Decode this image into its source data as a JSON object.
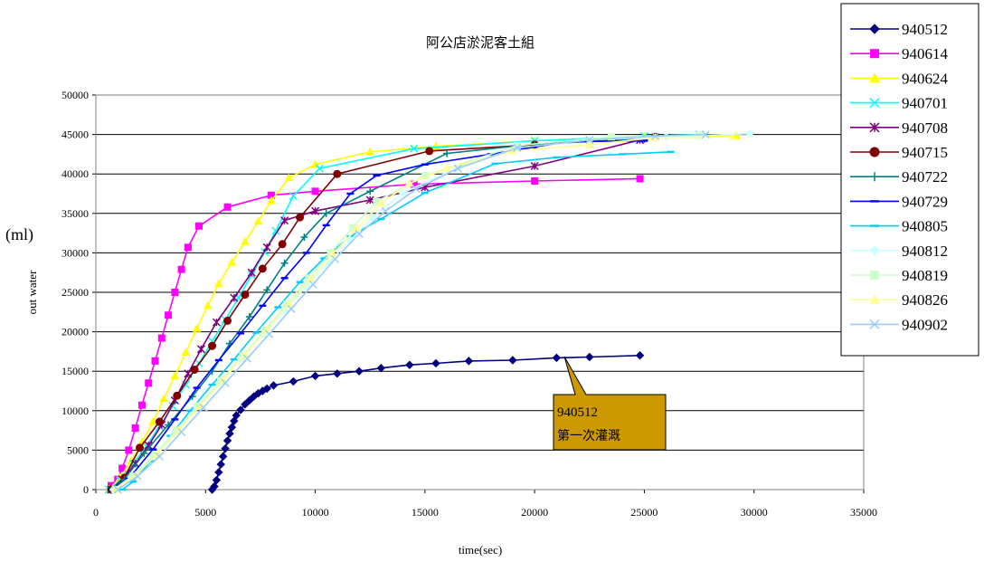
{
  "chart_data": {
    "type": "line",
    "title": "阿公店淤泥客土組",
    "xlabel": "time(sec)",
    "ylabel": "out water",
    "unit_label": "(ml)",
    "xlim": [
      0,
      35000
    ],
    "ylim": [
      0,
      50000
    ],
    "x_ticks": [
      0,
      5000,
      10000,
      15000,
      20000,
      25000,
      30000,
      35000
    ],
    "y_ticks": [
      0,
      5000,
      10000,
      15000,
      20000,
      25000,
      30000,
      35000,
      40000,
      45000,
      50000
    ],
    "grid": "horizontal",
    "legend_position": "right",
    "annotation": {
      "lines": [
        "940512",
        "第一次灌溉"
      ],
      "points_to_series": "940512"
    },
    "series": [
      {
        "name": "940512",
        "color": "#000080",
        "marker": "diamond",
        "points": [
          [
            5300,
            0
          ],
          [
            5400,
            400
          ],
          [
            5500,
            1200
          ],
          [
            5600,
            2200
          ],
          [
            5700,
            3200
          ],
          [
            5800,
            4200
          ],
          [
            5900,
            5200
          ],
          [
            6000,
            6200
          ],
          [
            6100,
            7100
          ],
          [
            6200,
            7900
          ],
          [
            6300,
            8700
          ],
          [
            6400,
            9400
          ],
          [
            6600,
            10100
          ],
          [
            6800,
            10800
          ],
          [
            7000,
            11300
          ],
          [
            7200,
            11800
          ],
          [
            7400,
            12200
          ],
          [
            7600,
            12500
          ],
          [
            7800,
            12800
          ],
          [
            8100,
            13200
          ],
          [
            9000,
            13700
          ],
          [
            10000,
            14400
          ],
          [
            11000,
            14700
          ],
          [
            12000,
            15000
          ],
          [
            13000,
            15400
          ],
          [
            14300,
            15800
          ],
          [
            15500,
            16000
          ],
          [
            17000,
            16300
          ],
          [
            19000,
            16400
          ],
          [
            21000,
            16700
          ],
          [
            22500,
            16800
          ],
          [
            24800,
            17000
          ]
        ]
      },
      {
        "name": "940614",
        "color": "#FF00FF",
        "marker": "square",
        "points": [
          [
            700,
            500
          ],
          [
            1000,
            1300
          ],
          [
            1200,
            2700
          ],
          [
            1500,
            5000
          ],
          [
            1800,
            7800
          ],
          [
            2100,
            10700
          ],
          [
            2400,
            13500
          ],
          [
            2700,
            16300
          ],
          [
            3000,
            19200
          ],
          [
            3300,
            22100
          ],
          [
            3600,
            25000
          ],
          [
            3900,
            27900
          ],
          [
            4200,
            30700
          ],
          [
            4700,
            33400
          ],
          [
            6000,
            35800
          ],
          [
            8000,
            37300
          ],
          [
            10000,
            37800
          ],
          [
            14500,
            38700
          ],
          [
            20000,
            39100
          ],
          [
            24800,
            39400
          ]
        ]
      },
      {
        "name": "940624",
        "color": "#FFFF00",
        "marker": "triangle",
        "points": [
          [
            600,
            0
          ],
          [
            1100,
            1500
          ],
          [
            1600,
            3600
          ],
          [
            2100,
            6000
          ],
          [
            2600,
            8600
          ],
          [
            3100,
            11500
          ],
          [
            3600,
            14400
          ],
          [
            4100,
            17400
          ],
          [
            4600,
            20400
          ],
          [
            5100,
            23300
          ],
          [
            5600,
            26100
          ],
          [
            6200,
            28800
          ],
          [
            6800,
            31400
          ],
          [
            7400,
            34000
          ],
          [
            8000,
            36600
          ],
          [
            8800,
            39500
          ],
          [
            10000,
            41200
          ],
          [
            12500,
            42800
          ],
          [
            15500,
            43500
          ],
          [
            20000,
            44200
          ],
          [
            25000,
            44700
          ],
          [
            29200,
            44800
          ]
        ]
      },
      {
        "name": "940701",
        "color": "#00FFFF",
        "marker": "x",
        "points": [
          [
            600,
            0
          ],
          [
            1100,
            1200
          ],
          [
            1700,
            3300
          ],
          [
            2300,
            5500
          ],
          [
            2900,
            8000
          ],
          [
            3500,
            10600
          ],
          [
            4100,
            13300
          ],
          [
            4700,
            16000
          ],
          [
            5300,
            18800
          ],
          [
            5900,
            21500
          ],
          [
            6500,
            24300
          ],
          [
            7100,
            27200
          ],
          [
            7700,
            30100
          ],
          [
            8200,
            32800
          ],
          [
            9000,
            37200
          ],
          [
            10200,
            40700
          ],
          [
            14500,
            43200
          ],
          [
            20000,
            44200
          ],
          [
            25000,
            44800
          ],
          [
            27500,
            45000
          ]
        ]
      },
      {
        "name": "940708",
        "color": "#800080",
        "marker": "asterisk",
        "points": [
          [
            700,
            0
          ],
          [
            1200,
            1300
          ],
          [
            1800,
            3300
          ],
          [
            2400,
            5600
          ],
          [
            3000,
            8200
          ],
          [
            3600,
            11300
          ],
          [
            4200,
            14700
          ],
          [
            4800,
            17800
          ],
          [
            5500,
            21200
          ],
          [
            6300,
            24300
          ],
          [
            7100,
            27500
          ],
          [
            7800,
            30700
          ],
          [
            8600,
            34100
          ],
          [
            10000,
            35300
          ],
          [
            12500,
            36700
          ],
          [
            15000,
            38300
          ],
          [
            20000,
            41000
          ],
          [
            24800,
            44300
          ]
        ]
      },
      {
        "name": "940715",
        "color": "#800000",
        "marker": "circle",
        "points": [
          [
            700,
            0
          ],
          [
            1300,
            1500
          ],
          [
            2000,
            5300
          ],
          [
            2900,
            8600
          ],
          [
            3700,
            11900
          ],
          [
            4500,
            15200
          ],
          [
            5300,
            18200
          ],
          [
            6000,
            21400
          ],
          [
            6800,
            24700
          ],
          [
            7600,
            28000
          ],
          [
            8500,
            31100
          ],
          [
            9300,
            34500
          ],
          [
            11000,
            40000
          ],
          [
            15200,
            42900
          ],
          [
            20000,
            43700
          ],
          [
            25500,
            44700
          ]
        ]
      },
      {
        "name": "940722",
        "color": "#008080",
        "marker": "plus",
        "points": [
          [
            700,
            0
          ],
          [
            1300,
            1300
          ],
          [
            2200,
            4600
          ],
          [
            3300,
            8200
          ],
          [
            4400,
            11800
          ],
          [
            5300,
            15000
          ],
          [
            6100,
            18500
          ],
          [
            7000,
            21900
          ],
          [
            7800,
            25300
          ],
          [
            8600,
            28700
          ],
          [
            9500,
            32000
          ],
          [
            10500,
            35000
          ],
          [
            12500,
            37800
          ],
          [
            16000,
            42600
          ],
          [
            20000,
            43800
          ],
          [
            25000,
            44400
          ]
        ]
      },
      {
        "name": "940729",
        "color": "#0000FF",
        "marker": "dash",
        "points": [
          [
            700,
            0
          ],
          [
            1500,
            1400
          ],
          [
            2600,
            5100
          ],
          [
            3600,
            8900
          ],
          [
            4600,
            12900
          ],
          [
            5600,
            16400
          ],
          [
            6600,
            19800
          ],
          [
            7600,
            23300
          ],
          [
            8600,
            26800
          ],
          [
            9600,
            30000
          ],
          [
            10500,
            33500
          ],
          [
            11600,
            37500
          ],
          [
            12800,
            39800
          ],
          [
            15000,
            41200
          ],
          [
            18000,
            42500
          ],
          [
            21500,
            44100
          ],
          [
            25000,
            44200
          ]
        ]
      },
      {
        "name": "940805",
        "color": "#00CCFF",
        "marker": "dash",
        "points": [
          [
            1200,
            0
          ],
          [
            1700,
            1000
          ],
          [
            2500,
            3600
          ],
          [
            3400,
            6800
          ],
          [
            4300,
            10000
          ],
          [
            5300,
            13300
          ],
          [
            6300,
            16500
          ],
          [
            7300,
            19900
          ],
          [
            8300,
            23100
          ],
          [
            9300,
            26300
          ],
          [
            10400,
            29300
          ],
          [
            11600,
            32100
          ],
          [
            13000,
            34300
          ],
          [
            15000,
            37600
          ],
          [
            18200,
            41300
          ],
          [
            21000,
            42100
          ],
          [
            24000,
            42500
          ],
          [
            26200,
            42800
          ]
        ]
      },
      {
        "name": "940812",
        "color": "#CCFFFF",
        "marker": "diamond",
        "points": [
          [
            800,
            0
          ],
          [
            1600,
            1600
          ],
          [
            2600,
            4200
          ],
          [
            3600,
            7400
          ],
          [
            4600,
            10500
          ],
          [
            5600,
            13500
          ],
          [
            6600,
            16600
          ],
          [
            7600,
            19600
          ],
          [
            8600,
            22700
          ],
          [
            9600,
            25800
          ],
          [
            10600,
            28800
          ],
          [
            11600,
            31600
          ],
          [
            12600,
            34500
          ],
          [
            14000,
            37600
          ],
          [
            16500,
            40800
          ],
          [
            19200,
            43300
          ],
          [
            22500,
            44300
          ],
          [
            26000,
            44700
          ],
          [
            29800,
            45100
          ]
        ]
      },
      {
        "name": "940819",
        "color": "#CCFFCC",
        "marker": "square",
        "points": [
          [
            900,
            0
          ],
          [
            1700,
            1700
          ],
          [
            2700,
            4400
          ],
          [
            3700,
            7500
          ],
          [
            4700,
            10600
          ],
          [
            5700,
            13800
          ],
          [
            6700,
            17000
          ],
          [
            7700,
            20200
          ],
          [
            8700,
            23500
          ],
          [
            9700,
            26800
          ],
          [
            10700,
            30000
          ],
          [
            11700,
            33200
          ],
          [
            12800,
            36500
          ],
          [
            15000,
            39800
          ],
          [
            19200,
            43600
          ],
          [
            23500,
            44700
          ],
          [
            27500,
            44900
          ]
        ]
      },
      {
        "name": "940826",
        "color": "#FFFF99",
        "marker": "triangle",
        "points": [
          [
            900,
            0
          ],
          [
            1800,
            1800
          ],
          [
            2800,
            4500
          ],
          [
            3800,
            7600
          ],
          [
            4800,
            10700
          ],
          [
            5800,
            13900
          ],
          [
            6800,
            17100
          ],
          [
            7800,
            20300
          ],
          [
            8800,
            23500
          ],
          [
            9800,
            26700
          ],
          [
            10800,
            29900
          ],
          [
            11900,
            33100
          ],
          [
            13000,
            36300
          ],
          [
            14300,
            38800
          ],
          [
            16000,
            40700
          ],
          [
            19000,
            42900
          ],
          [
            22500,
            43700
          ],
          [
            25500,
            44600
          ],
          [
            29000,
            44700
          ]
        ]
      },
      {
        "name": "940902",
        "color": "#99CCFF",
        "marker": "x",
        "points": [
          [
            1000,
            0
          ],
          [
            1900,
            1700
          ],
          [
            2900,
            4200
          ],
          [
            3900,
            7300
          ],
          [
            4900,
            10400
          ],
          [
            5900,
            13500
          ],
          [
            6900,
            16600
          ],
          [
            7900,
            19700
          ],
          [
            8900,
            22900
          ],
          [
            9900,
            26000
          ],
          [
            10900,
            29200
          ],
          [
            12000,
            32400
          ],
          [
            13200,
            35300
          ],
          [
            14600,
            38100
          ],
          [
            16500,
            40700
          ],
          [
            19200,
            43300
          ],
          [
            22500,
            44300
          ],
          [
            25500,
            44800
          ],
          [
            27800,
            45000
          ]
        ]
      }
    ]
  }
}
